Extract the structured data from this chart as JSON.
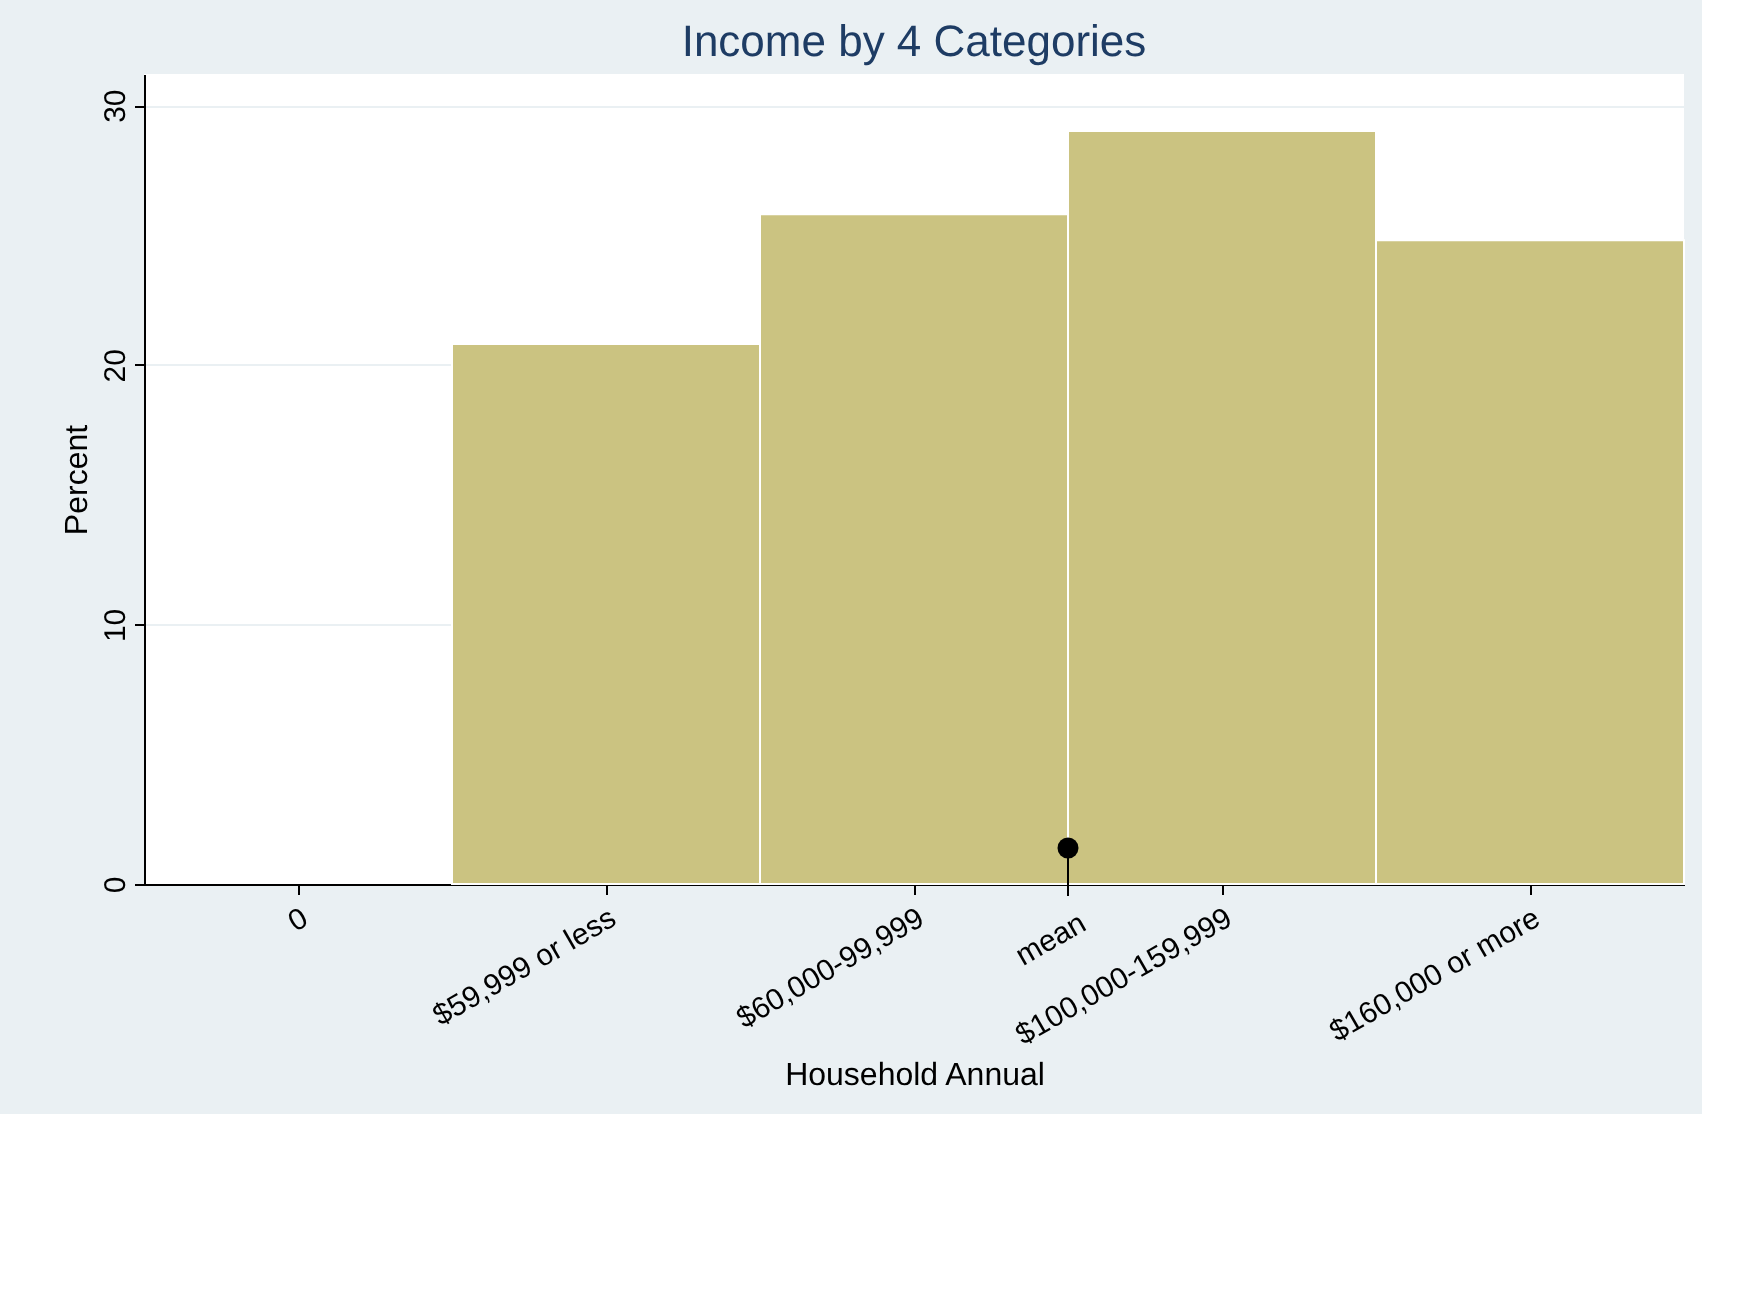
{
  "chart_data": {
    "type": "bar",
    "title": "Income by 4 Categories",
    "xlabel": "Household Annual",
    "ylabel": "Percent",
    "categories": [
      "0",
      "$59,999 or less",
      "$60,000-99,999",
      "$100,000-159,999",
      "$160,000 or more"
    ],
    "values": [
      null,
      20.8,
      25.8,
      29,
      24.8
    ],
    "color": "#cbc381",
    "annotations": [
      "mean"
    ],
    "ylim": [
      0,
      31.2
    ],
    "yticks": [
      0,
      10,
      20,
      30
    ],
    "grid": "y"
  }
}
